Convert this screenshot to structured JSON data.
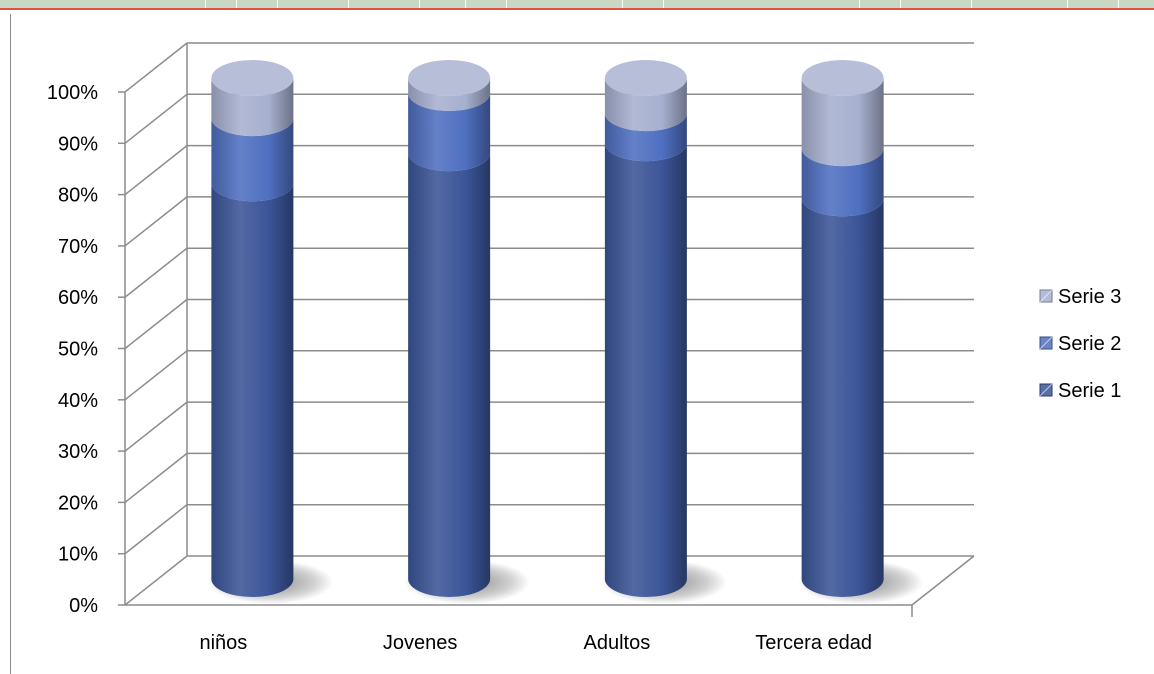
{
  "chart_data": {
    "type": "bar",
    "stacked": true,
    "percent_stacked": true,
    "style": "3d-cylinder",
    "title": "",
    "xlabel": "",
    "ylabel": "",
    "ylim": [
      0,
      1
    ],
    "yticks": [
      "0%",
      "10%",
      "20%",
      "30%",
      "40%",
      "50%",
      "60%",
      "70%",
      "80%",
      "90%",
      "100%"
    ],
    "categories": [
      "niños",
      "Jovenes",
      "Adultos",
      "Tercera edad"
    ],
    "series": [
      {
        "name": "Serie 1",
        "values": [
          0.79,
          0.85,
          0.87,
          0.76
        ],
        "color": "#3b5598"
      },
      {
        "name": "Serie 2",
        "values": [
          0.13,
          0.12,
          0.06,
          0.1
        ],
        "color": "#4f6fc0"
      },
      {
        "name": "Serie 3",
        "values": [
          0.08,
          0.03,
          0.07,
          0.14
        ],
        "color": "#a6b0cf"
      }
    ],
    "grid": true,
    "legend_position": "right"
  }
}
